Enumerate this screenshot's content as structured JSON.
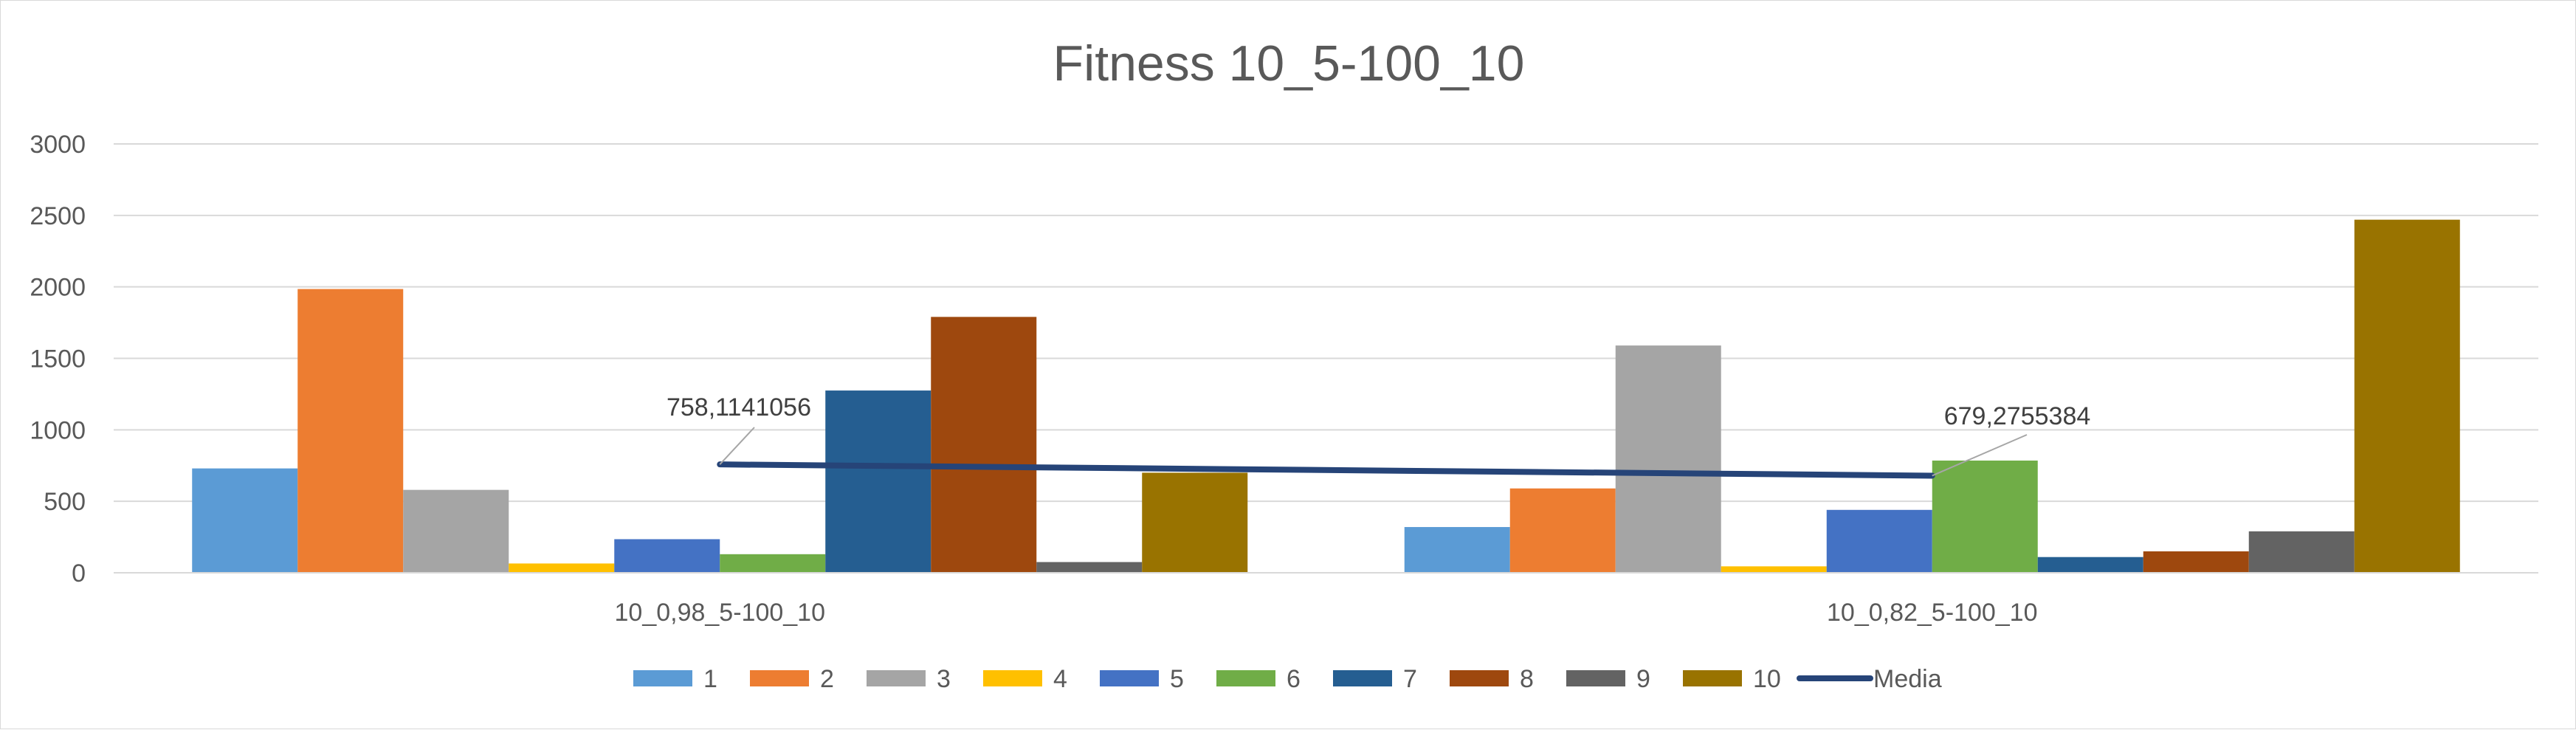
{
  "chart_data": {
    "type": "bar",
    "title": "Fitness 10_5-100_10",
    "xlabel": "",
    "ylabel": "",
    "ylim": [
      0,
      3000
    ],
    "yticks": [
      0,
      500,
      1000,
      1500,
      2000,
      2500,
      3000
    ],
    "grid": true,
    "legend_position": "bottom",
    "categories": [
      "10_0,98_5-100_10",
      "10_0,82_5-100_10"
    ],
    "series": [
      {
        "name": "1",
        "color": "#5B9BD5",
        "values": [
          730,
          320
        ]
      },
      {
        "name": "2",
        "color": "#ED7D31",
        "values": [
          1985,
          590
        ]
      },
      {
        "name": "3",
        "color": "#A5A5A5",
        "values": [
          580,
          1590
        ]
      },
      {
        "name": "4",
        "color": "#FFC000",
        "values": [
          65,
          45
        ]
      },
      {
        "name": "5",
        "color": "#4472C4",
        "values": [
          235,
          440
        ]
      },
      {
        "name": "6",
        "color": "#70AD47",
        "values": [
          130,
          785
        ]
      },
      {
        "name": "7",
        "color": "#255E91",
        "values": [
          1275,
          110
        ]
      },
      {
        "name": "8",
        "color": "#9E480E",
        "values": [
          1790,
          150
        ]
      },
      {
        "name": "9",
        "color": "#636363",
        "values": [
          75,
          290
        ]
      },
      {
        "name": "10",
        "color": "#997300",
        "values": [
          700,
          2470
        ]
      }
    ],
    "line_series": {
      "name": "Media",
      "color": "#264478",
      "values": [
        758.1141056,
        679.2755384
      ],
      "data_labels": [
        "758,1141056",
        "679,2755384"
      ]
    }
  }
}
